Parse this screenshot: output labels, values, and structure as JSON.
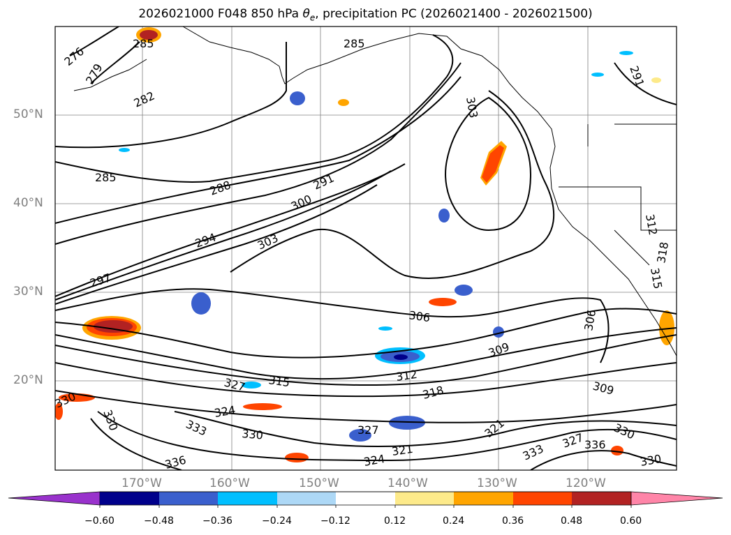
{
  "title": {
    "prefix": "2026021000 F048 850 hPa ",
    "theta_base": "θ",
    "theta_sub": "e",
    "suffix": ", precipitation PC (2026021400 - 2026021500)"
  },
  "map": {
    "latitude_labels": [
      "50°N",
      "40°N",
      "30°N",
      "20°N"
    ],
    "longitude_labels": [
      "170°W",
      "160°W",
      "150°W",
      "140°W",
      "130°W",
      "120°W"
    ],
    "contour_labels": [
      "276",
      "279",
      "282",
      "285",
      "285",
      "285",
      "288",
      "291",
      "294",
      "297",
      "300",
      "303",
      "303",
      "306",
      "309",
      "309",
      "312",
      "315",
      "318",
      "321",
      "324",
      "327",
      "327",
      "330",
      "330",
      "330",
      "333",
      "333",
      "336",
      "336",
      "291",
      "312",
      "315",
      "318",
      "306",
      "330",
      "321",
      "324",
      "327",
      "330"
    ],
    "line_color": "#000000",
    "grid_color": "#808080"
  },
  "colorbar": {
    "ticks": [
      "−0.60",
      "−0.48",
      "−0.36",
      "−0.24",
      "−0.12",
      "0.12",
      "0.24",
      "0.36",
      "0.48",
      "0.60"
    ],
    "colors": [
      "#9932cc",
      "#00008b",
      "#3a5fcd",
      "#00bfff",
      "#add8f6",
      "#ffffff",
      "#fdea8a",
      "#ffa500",
      "#ff4500",
      "#b22222",
      "#ff85a8"
    ]
  }
}
